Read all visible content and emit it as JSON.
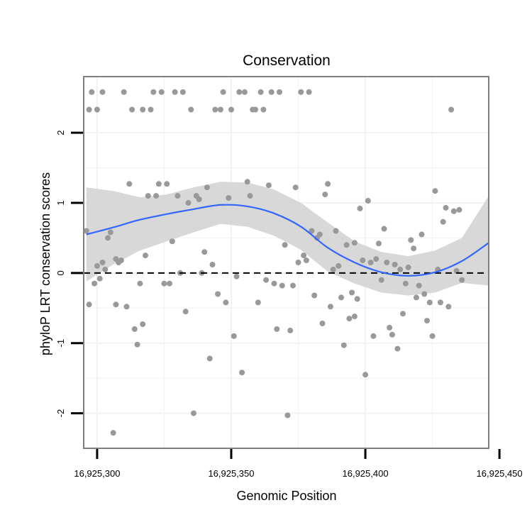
{
  "chart_data": {
    "type": "scatter",
    "title": "Conservation",
    "xlabel": "Genomic Position",
    "ylabel": "phyloP LRT conservation scores",
    "xlim": [
      16925295,
      16925446
    ],
    "ylim": [
      -2.5,
      2.8
    ],
    "x_ticks": [
      16925300,
      16925350,
      16925400,
      16925450
    ],
    "x_tick_labels": [
      "16,925,300",
      "16,925,350",
      "16,925,400",
      "16,925,450"
    ],
    "y_ticks": [
      -2,
      -1,
      0,
      1,
      2
    ],
    "y_tick_labels": [
      "-2",
      "-1",
      "0",
      "1",
      "2"
    ],
    "reference_line_y": 0,
    "colors": {
      "points": "#999999",
      "smooth_line": "#3366ff",
      "confidence_band": "#d4d4d4",
      "panel_border": "#7f7f7f",
      "grid": "#f2f2f2",
      "reference_line": "#000000"
    },
    "points": [
      [
        16925296,
        0.6
      ],
      [
        16925297,
        -0.45
      ],
      [
        16925297,
        2.33
      ],
      [
        16925298,
        2.58
      ],
      [
        16925299,
        -0.15
      ],
      [
        16925300,
        0.1
      ],
      [
        16925300,
        2.33
      ],
      [
        16925301,
        -0.08
      ],
      [
        16925302,
        0.15
      ],
      [
        16925302,
        2.58
      ],
      [
        16925303,
        0.05
      ],
      [
        16925304,
        0.5
      ],
      [
        16925305,
        0.58
      ],
      [
        16925306,
        -2.28
      ],
      [
        16925307,
        0.2
      ],
      [
        16925307,
        -0.45
      ],
      [
        16925308,
        0.15
      ],
      [
        16925309,
        0.18
      ],
      [
        16925310,
        2.58
      ],
      [
        16925311,
        -0.48
      ],
      [
        16925312,
        1.27
      ],
      [
        16925313,
        2.33
      ],
      [
        16925314,
        -0.8
      ],
      [
        16925315,
        -1.02
      ],
      [
        16925316,
        -0.15
      ],
      [
        16925317,
        -0.73
      ],
      [
        16925317,
        2.33
      ],
      [
        16925318,
        0.25
      ],
      [
        16925319,
        1.1
      ],
      [
        16925320,
        2.33
      ],
      [
        16925321,
        2.58
      ],
      [
        16925322,
        1.1
      ],
      [
        16925323,
        1.27
      ],
      [
        16925324,
        2.58
      ],
      [
        16925325,
        -0.15
      ],
      [
        16925326,
        1.27
      ],
      [
        16925327,
        -0.15
      ],
      [
        16925328,
        0.45
      ],
      [
        16925329,
        2.58
      ],
      [
        16925330,
        1.1
      ],
      [
        16925331,
        0
      ],
      [
        16925332,
        2.58
      ],
      [
        16925333,
        -0.55
      ],
      [
        16925334,
        1.0
      ],
      [
        16925335,
        2.33
      ],
      [
        16925336,
        -2.0
      ],
      [
        16925337,
        1.1
      ],
      [
        16925338,
        1.05
      ],
      [
        16925339,
        0
      ],
      [
        16925340,
        0.3
      ],
      [
        16925341,
        1.22
      ],
      [
        16925342,
        -1.22
      ],
      [
        16925343,
        0.12
      ],
      [
        16925344,
        2.33
      ],
      [
        16925345,
        -0.3
      ],
      [
        16925346,
        2.33
      ],
      [
        16925347,
        2.58
      ],
      [
        16925348,
        -0.42
      ],
      [
        16925349,
        1.07
      ],
      [
        16925350,
        2.33
      ],
      [
        16925351,
        -0.9
      ],
      [
        16925352,
        -0.05
      ],
      [
        16925353,
        2.58
      ],
      [
        16925354,
        -1.42
      ],
      [
        16925355,
        2.58
      ],
      [
        16925356,
        1.3
      ],
      [
        16925357,
        1.1
      ],
      [
        16925358,
        2.33
      ],
      [
        16925359,
        2.33
      ],
      [
        16925360,
        -0.42
      ],
      [
        16925361,
        2.58
      ],
      [
        16925362,
        2.33
      ],
      [
        16925363,
        -0.1
      ],
      [
        16925364,
        1.25
      ],
      [
        16925365,
        2.58
      ],
      [
        16925366,
        -0.15
      ],
      [
        16925367,
        -0.8
      ],
      [
        16925368,
        2.58
      ],
      [
        16925369,
        -0.18
      ],
      [
        16925370,
        0.4
      ],
      [
        16925371,
        -2.03
      ],
      [
        16925372,
        -0.82
      ],
      [
        16925373,
        -0.18
      ],
      [
        16925374,
        1.22
      ],
      [
        16925375,
        0.15
      ],
      [
        16925376,
        2.58
      ],
      [
        16925377,
        0.25
      ],
      [
        16925378,
        0.18
      ],
      [
        16925379,
        2.58
      ],
      [
        16925380,
        0.6
      ],
      [
        16925381,
        -0.32
      ],
      [
        16925382,
        0.5
      ],
      [
        16925383,
        0.55
      ],
      [
        16925384,
        -0.72
      ],
      [
        16925385,
        1.12
      ],
      [
        16925386,
        1.27
      ],
      [
        16925387,
        -0.48
      ],
      [
        16925388,
        0.05
      ],
      [
        16925389,
        0.6
      ],
      [
        16925390,
        0.1
      ],
      [
        16925391,
        -0.35
      ],
      [
        16925392,
        -1.03
      ],
      [
        16925393,
        0.4
      ],
      [
        16925394,
        -0.65
      ],
      [
        16925395,
        -0.28
      ],
      [
        16925396,
        0.43
      ],
      [
        16925396,
        -0.62
      ],
      [
        16925397,
        -0.37
      ],
      [
        16925398,
        0.92
      ],
      [
        16925399,
        0.18
      ],
      [
        16925400,
        -1.45
      ],
      [
        16925401,
        1.03
      ],
      [
        16925402,
        0.15
      ],
      [
        16925403,
        -0.9
      ],
      [
        16925404,
        0.2
      ],
      [
        16925405,
        0.42
      ],
      [
        16925406,
        -0.1
      ],
      [
        16925407,
        0.63
      ],
      [
        16925408,
        0.15
      ],
      [
        16925409,
        -0.78
      ],
      [
        16925410,
        -0.88
      ],
      [
        16925411,
        0.12
      ],
      [
        16925412,
        -1.08
      ],
      [
        16925413,
        0.05
      ],
      [
        16925414,
        -0.58
      ],
      [
        16925415,
        -0.15
      ],
      [
        16925416,
        0.08
      ],
      [
        16925417,
        0.47
      ],
      [
        16925418,
        0.35
      ],
      [
        16925419,
        -0.35
      ],
      [
        16925420,
        -0.18
      ],
      [
        16925421,
        0.55
      ],
      [
        16925422,
        -0.3
      ],
      [
        16925423,
        -0.68
      ],
      [
        16925424,
        -0.42
      ],
      [
        16925425,
        -0.9
      ],
      [
        16925426,
        1.17
      ],
      [
        16925427,
        0.05
      ],
      [
        16925428,
        -0.42
      ],
      [
        16925429,
        0.73
      ],
      [
        16925430,
        0.93
      ],
      [
        16925431,
        -0.48
      ],
      [
        16925432,
        2.33
      ],
      [
        16925433,
        0.88
      ],
      [
        16925434,
        0.03
      ],
      [
        16925435,
        0.9
      ],
      [
        16925436,
        -0.1
      ]
    ],
    "smooth": {
      "x": [
        16925296,
        16925306,
        16925316,
        16925326,
        16925336,
        16925346,
        16925356,
        16925366,
        16925376,
        16925386,
        16925396,
        16925406,
        16925416,
        16925426,
        16925436,
        16925446
      ],
      "fit": [
        0.55,
        0.65,
        0.76,
        0.84,
        0.91,
        0.97,
        0.95,
        0.85,
        0.66,
        0.36,
        0.15,
        0.01,
        -0.04,
        0.01,
        0.17,
        0.43
      ],
      "lower": [
        -0.12,
        0.12,
        0.32,
        0.45,
        0.58,
        0.7,
        0.66,
        0.53,
        0.33,
        0.02,
        -0.15,
        -0.28,
        -0.32,
        -0.28,
        -0.14,
        -0.18
      ],
      "upper": [
        1.22,
        1.17,
        1.08,
        1.12,
        1.22,
        1.3,
        1.29,
        1.19,
        1.0,
        0.72,
        0.45,
        0.3,
        0.24,
        0.32,
        0.5,
        1.1
      ]
    }
  }
}
